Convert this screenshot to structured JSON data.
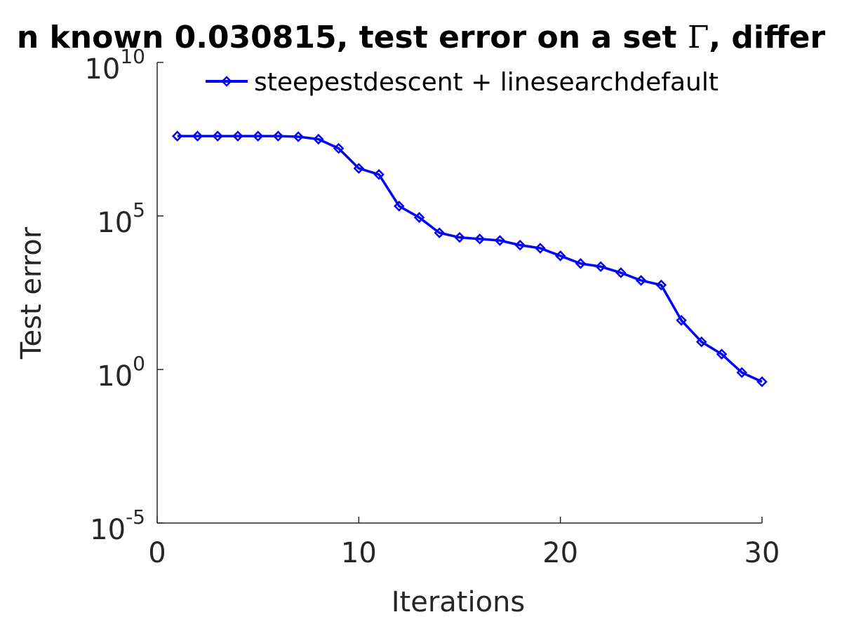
{
  "chart_data": {
    "type": "line",
    "title_pre": "n known 0.030815, test error on a set ",
    "title_symbol": "Γ",
    "title_post": ", differ",
    "xlabel": "Iterations",
    "ylabel": "Test error",
    "xlim": [
      0,
      30
    ],
    "ylim_exponents": [
      -5,
      10
    ],
    "yscale": "log",
    "grid": false,
    "legend_position": "top-center",
    "x_ticks": [
      {
        "value": 0,
        "label": "0"
      },
      {
        "value": 10,
        "label": "10"
      },
      {
        "value": 20,
        "label": "20"
      },
      {
        "value": 30,
        "label": "30"
      }
    ],
    "y_ticks": [
      {
        "exp": 10,
        "base": "10",
        "sup": "10"
      },
      {
        "exp": 5,
        "base": "10",
        "sup": "5"
      },
      {
        "exp": 0,
        "base": "10",
        "sup": "0"
      },
      {
        "exp": -5,
        "base": "10",
        "sup": "-5"
      }
    ],
    "series": [
      {
        "name": "steepestdescent + linesearchdefault",
        "color": "#0000ff",
        "marker": "diamond",
        "x": [
          1,
          2,
          3,
          4,
          5,
          6,
          7,
          8,
          9,
          10,
          11,
          12,
          13,
          14,
          15,
          16,
          17,
          18,
          19,
          20,
          21,
          22,
          23,
          24,
          25,
          26,
          27,
          28,
          29,
          30
        ],
        "y_log10": [
          7.6,
          7.6,
          7.6,
          7.6,
          7.6,
          7.6,
          7.58,
          7.5,
          7.2,
          6.55,
          6.35,
          5.32,
          4.95,
          4.45,
          4.3,
          4.25,
          4.2,
          4.05,
          3.95,
          3.7,
          3.45,
          3.35,
          3.15,
          2.9,
          2.75,
          1.6,
          0.9,
          0.5,
          -0.1,
          -0.4
        ]
      }
    ]
  }
}
